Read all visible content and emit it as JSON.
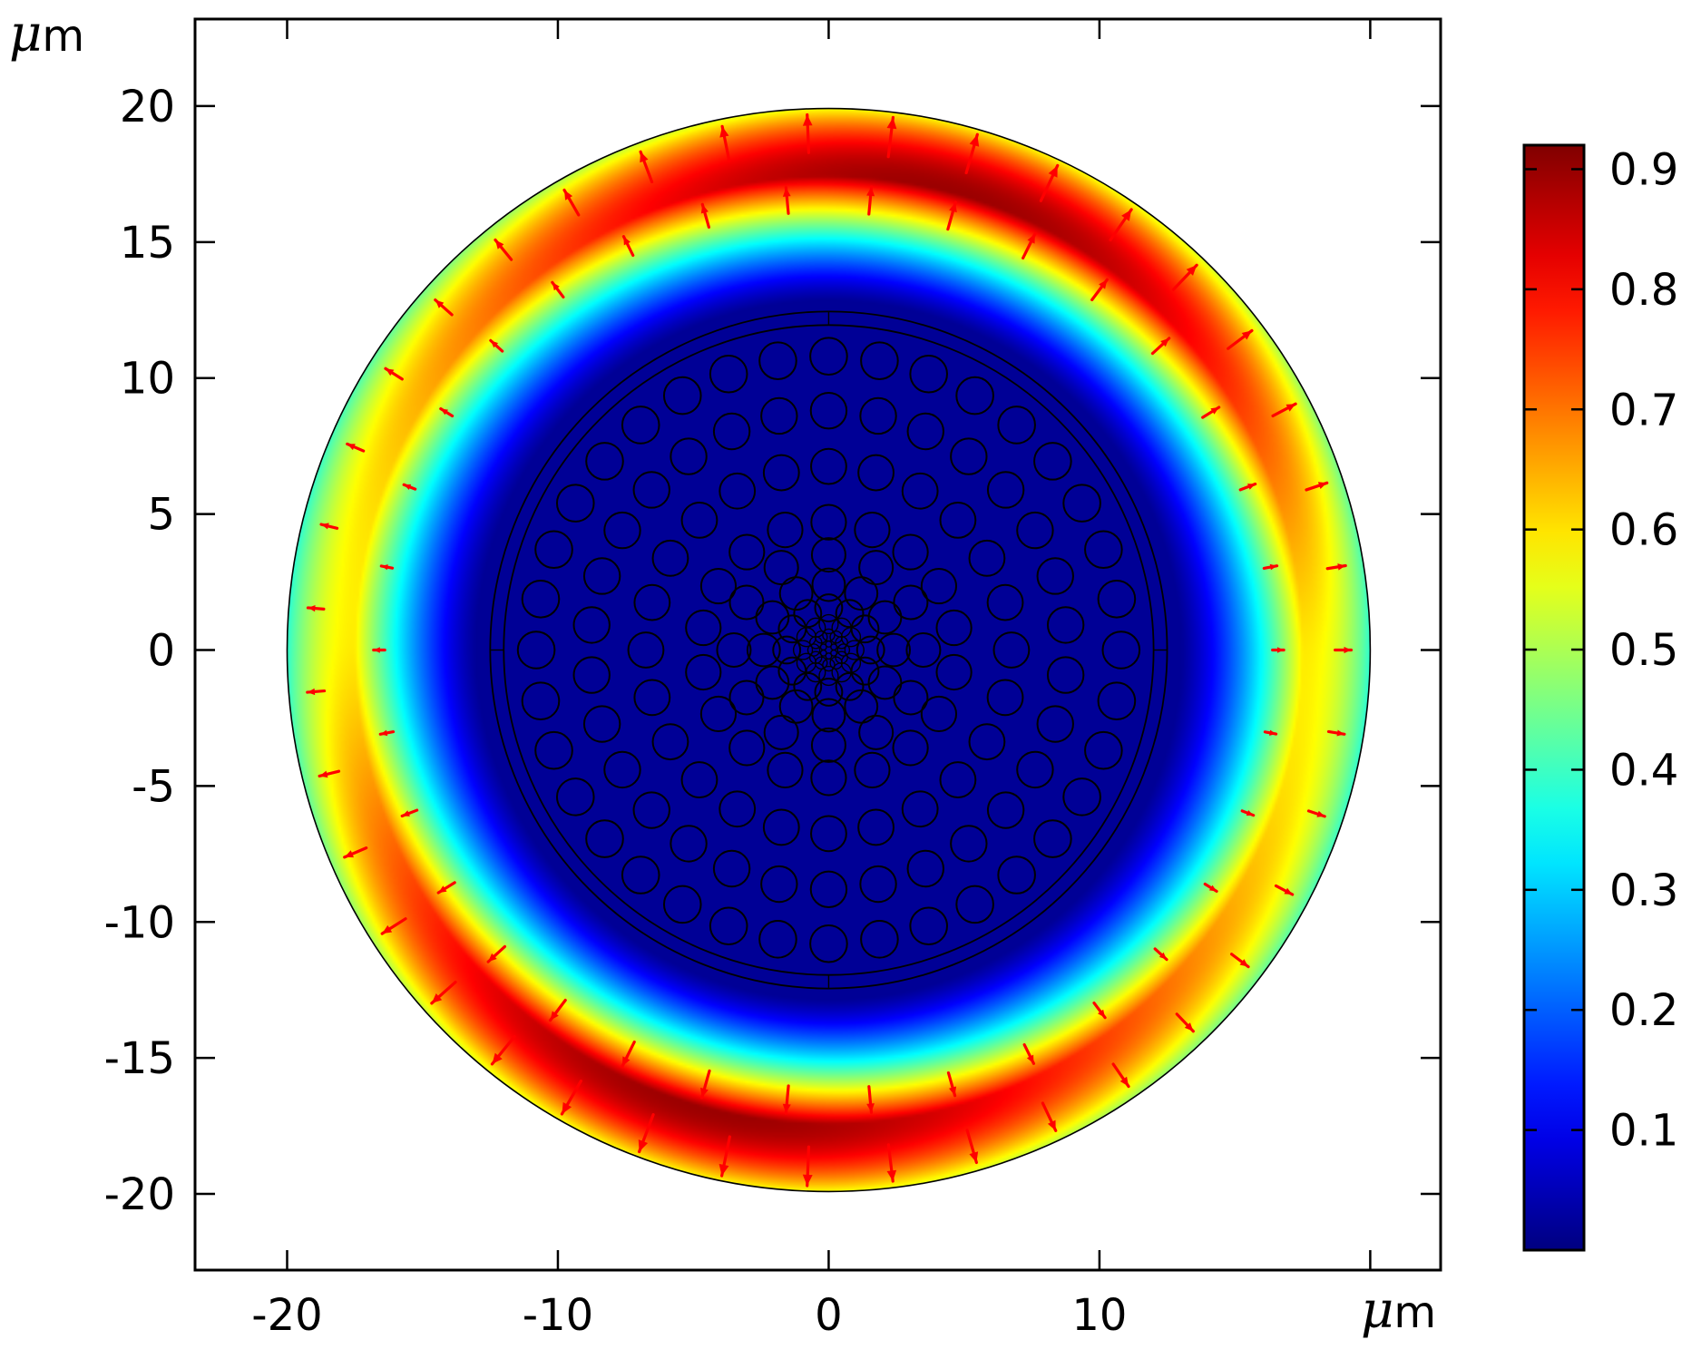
{
  "chart_data": {
    "type": "heatmap",
    "title": "",
    "xlabel": "μm",
    "ylabel": "μm",
    "x_unit_label": {
      "mu": "μ",
      "m": "m"
    },
    "y_unit_label": {
      "mu": "μ",
      "m": "m"
    },
    "xlim": [
      -23.4,
      22.6
    ],
    "ylim": [
      -22.8,
      23.2
    ],
    "x_ticks": [
      -20,
      -10,
      0,
      10
    ],
    "x_tick_labels": [
      "-20",
      "-10",
      "0",
      "10"
    ],
    "x_tick_marks": [
      -20,
      -10,
      0,
      10,
      20
    ],
    "y_ticks": [
      20,
      15,
      10,
      5,
      0,
      -5,
      -10,
      -15,
      -20
    ],
    "y_tick_labels": [
      "20",
      "15",
      "10",
      "5",
      "0",
      "-5",
      "-10",
      "-15",
      "-20"
    ],
    "grid": false,
    "domain": {
      "outer_radius": 20,
      "jacket_outer_radius": 12.5,
      "jacket_inner_radius": 12,
      "hole_rings": [
        {
          "count": 6,
          "ring_radius": 0.22,
          "hole_radius": 0.11
        },
        {
          "count": 12,
          "ring_radius": 0.55,
          "hole_radius": 0.22
        },
        {
          "count": 12,
          "ring_radius": 0.95,
          "hole_radius": 0.35
        },
        {
          "count": 12,
          "ring_radius": 1.55,
          "hole_radius": 0.5
        },
        {
          "count": 12,
          "ring_radius": 2.4,
          "hole_radius": 0.6
        },
        {
          "count": 12,
          "ring_radius": 3.5,
          "hole_radius": 0.62
        },
        {
          "count": 18,
          "ring_radius": 4.7,
          "hole_radius": 0.64
        },
        {
          "count": 24,
          "ring_radius": 6.75,
          "hole_radius": 0.65
        },
        {
          "count": 30,
          "ring_radius": 8.8,
          "hole_radius": 0.66
        },
        {
          "count": 36,
          "ring_radius": 10.8,
          "hole_radius": 0.68
        }
      ]
    },
    "field": {
      "quantity": "normalized field norm",
      "core_value": 0.02,
      "ring_inner_radius": 12.5,
      "ring_peak_radius": 17.5,
      "peak_value": 0.92,
      "angular_modulation": "max near top and bottom (about 90° and 270°), min near left and right"
    },
    "arrows": {
      "color": "#ff0000",
      "description": "radial in-plane vector field, pointing outward; largest near top and bottom of the ring"
    },
    "colorbar": {
      "colormap": "jet",
      "range": [
        0.0,
        0.92
      ],
      "ticks": [
        0.9,
        0.8,
        0.7,
        0.6,
        0.5,
        0.4,
        0.3,
        0.2,
        0.1
      ],
      "tick_labels": [
        "0.9",
        "0.8",
        "0.7",
        "0.6",
        "0.5",
        "0.4",
        "0.3",
        "0.2",
        "0.1"
      ],
      "placement": "right"
    }
  }
}
